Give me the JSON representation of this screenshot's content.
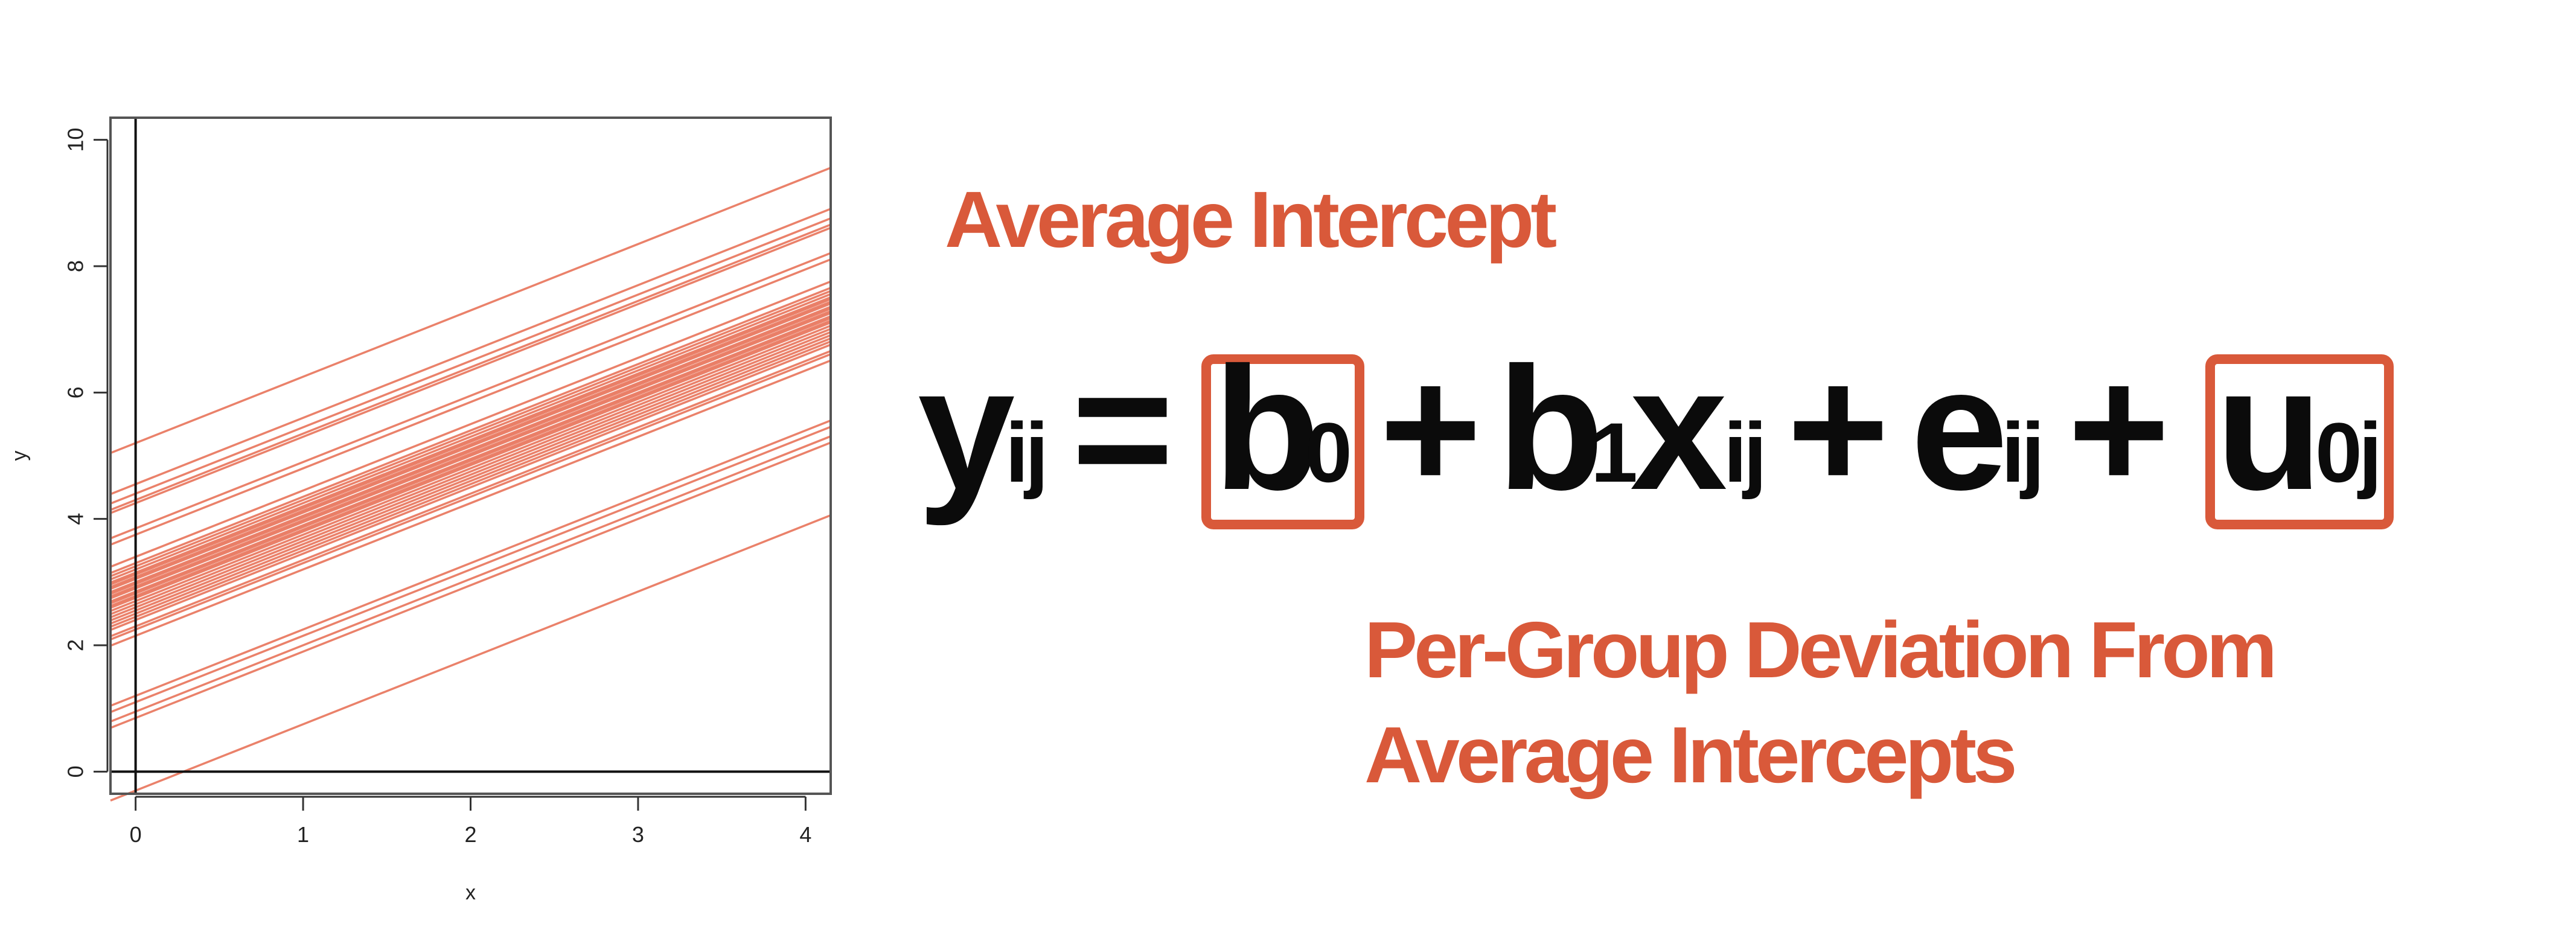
{
  "chart_data": {
    "type": "line",
    "xlabel": "x",
    "ylabel": "y",
    "xlim": [
      -0.15,
      4.15
    ],
    "ylim": [
      -0.35,
      10.35
    ],
    "x_ticks": [
      0,
      1,
      2,
      3,
      4
    ],
    "y_ticks": [
      0,
      2,
      4,
      6,
      8,
      10
    ],
    "slope": 1.05,
    "intercepts": [
      5.2,
      4.55,
      4.4,
      4.3,
      4.25,
      3.85,
      3.75,
      3.4,
      3.3,
      3.25,
      3.2,
      3.15,
      3.12,
      3.08,
      3.05,
      3.0,
      2.97,
      2.93,
      2.9,
      2.85,
      2.82,
      2.78,
      2.75,
      2.7,
      2.65,
      2.6,
      2.55,
      2.5,
      2.45,
      2.4,
      2.3,
      2.25,
      2.15,
      1.2,
      1.1,
      0.95,
      0.85,
      -0.3
    ],
    "reference_lines": {
      "x": 0,
      "y": 0
    },
    "line_color": "#e8735a",
    "grid": false
  },
  "annotations": {
    "average_intercept": "Average Intercept",
    "per_group_deviation": "Per-Group Deviation From Average Intercepts"
  },
  "equation": {
    "y": "y",
    "y_sub": "ij",
    "eq": "=",
    "b0": "b",
    "b0_sub": "0",
    "plus1": "+",
    "b1": "b",
    "b1_sub": "1",
    "x": "x",
    "x_sub": "ij",
    "plus2": "+",
    "e": "e",
    "e_sub": "ij",
    "plus3": "+",
    "u": "u",
    "u_sub": "0j"
  },
  "colors": {
    "accent": "#d9593a",
    "line": "#e8735a",
    "text": "#0b0b0b"
  }
}
